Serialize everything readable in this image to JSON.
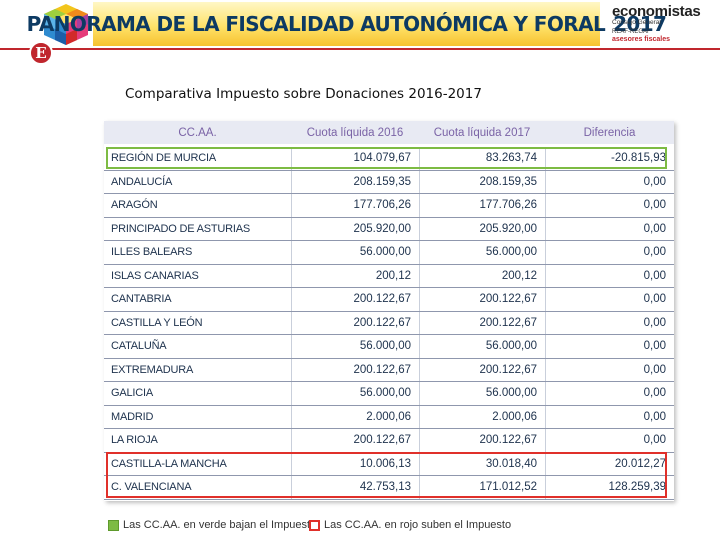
{
  "header": {
    "banner_title": "PANORAMA DE LA FISCALIDAD AUTONÓMICA Y FORAL",
    "banner_year": "2017",
    "brand_name": "economistas",
    "brand_sub": "Consejo General",
    "brand_reaf": "REAF-REGAF",
    "brand_asesores": "asesores fiscales",
    "logo_letter": "E",
    "colors": {
      "accent_red": "#c0262d",
      "banner_yellow": "#ffe36a",
      "navy": "#0d3a63"
    }
  },
  "page_title": "Comparativa Impuesto sobre Donaciones 2016-2017",
  "table": {
    "headers": [
      "CC.AA.",
      "Cuota líquida 2016",
      "Cuota líquida 2017",
      "Diferencia"
    ],
    "rows": [
      [
        "REGIÓN DE MURCIA",
        "104.079,67",
        "83.263,74",
        "-20.815,93"
      ],
      [
        "ANDALUCÍA",
        "208.159,35",
        "208.159,35",
        "0,00"
      ],
      [
        "ARAGÓN",
        "177.706,26",
        "177.706,26",
        "0,00"
      ],
      [
        "PRINCIPADO DE ASTURIAS",
        "205.920,00",
        "205.920,00",
        "0,00"
      ],
      [
        "ILLES BALEARS",
        "56.000,00",
        "56.000,00",
        "0,00"
      ],
      [
        "ISLAS CANARIAS",
        "200,12",
        "200,12",
        "0,00"
      ],
      [
        "CANTABRIA",
        "200.122,67",
        "200.122,67",
        "0,00"
      ],
      [
        "CASTILLA Y LEÓN",
        "200.122,67",
        "200.122,67",
        "0,00"
      ],
      [
        "CATALUÑA",
        "56.000,00",
        "56.000,00",
        "0,00"
      ],
      [
        "EXTREMADURA",
        "200.122,67",
        "200.122,67",
        "0,00"
      ],
      [
        "GALICIA",
        "56.000,00",
        "56.000,00",
        "0,00"
      ],
      [
        "MADRID",
        "2.000,06",
        "2.000,06",
        "0,00"
      ],
      [
        "LA RIOJA",
        "200.122,67",
        "200.122,67",
        "0,00"
      ],
      [
        "CASTILLA-LA MANCHA",
        "10.006,13",
        "30.018,40",
        "20.012,27"
      ],
      [
        "C. VALENCIANA",
        "42.753,13",
        "171.012,52",
        "128.259,39"
      ]
    ],
    "highlight_colors": {
      "decrease": "#7dbb43",
      "increase": "#e0302a"
    }
  },
  "legend": {
    "green_label": "Las CC.AA. en verde bajan el Impuesto",
    "red_label": "Las CC.AA. en rojo suben el Impuesto"
  }
}
